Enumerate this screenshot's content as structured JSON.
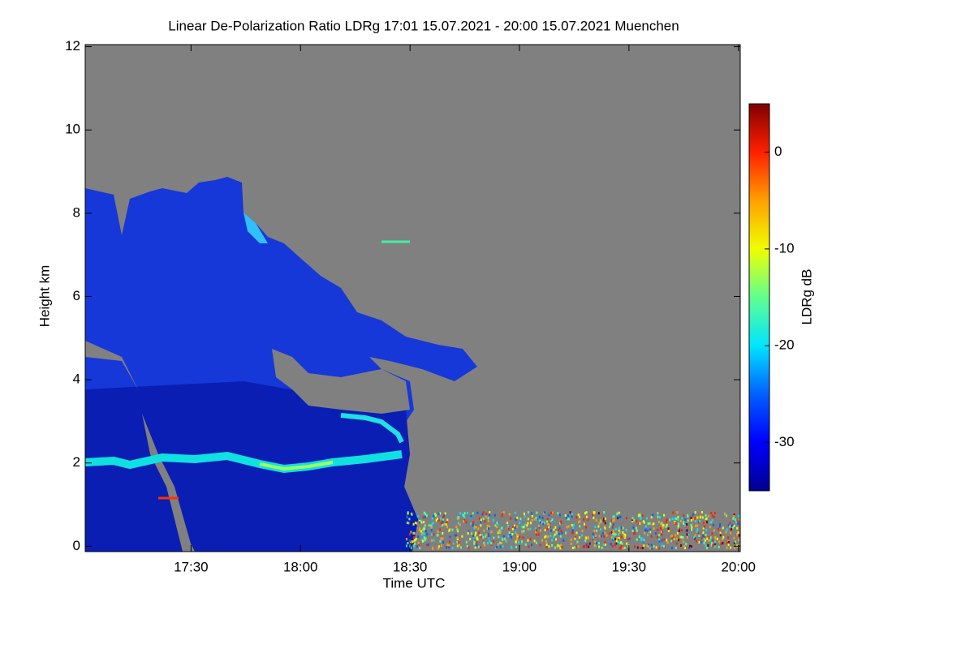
{
  "chart_data": {
    "type": "heatmap",
    "title": "Linear De-Polarization Ratio LDRg   17:01 15.07.2021 - 20:00 15.07.2021 Muenchen",
    "x_label": "Time UTC",
    "y_label": "Height km",
    "colorbar_label": "LDRg dB",
    "xlim": [
      1,
      180.5
    ],
    "xticks": [
      {
        "value": 30,
        "label": "17:30"
      },
      {
        "value": 60,
        "label": "18:00"
      },
      {
        "value": 90,
        "label": "18:30"
      },
      {
        "value": 120,
        "label": "19:00"
      },
      {
        "value": 150,
        "label": "19:30"
      },
      {
        "value": 180,
        "label": "20:00"
      }
    ],
    "ylim": [
      -0.13,
      12.05
    ],
    "yticks": [
      0,
      2,
      4,
      6,
      8,
      10,
      12
    ],
    "zlim": [
      -35,
      5
    ],
    "zticks": [
      0,
      -10,
      -20,
      -30
    ],
    "background_color": "#808080",
    "colormap": [
      "#00008f",
      "#0000ff",
      "#0060ff",
      "#00e5ff",
      "#60ff90",
      "#f0ff00",
      "#ffa000",
      "#ff2000",
      "#800000"
    ]
  }
}
